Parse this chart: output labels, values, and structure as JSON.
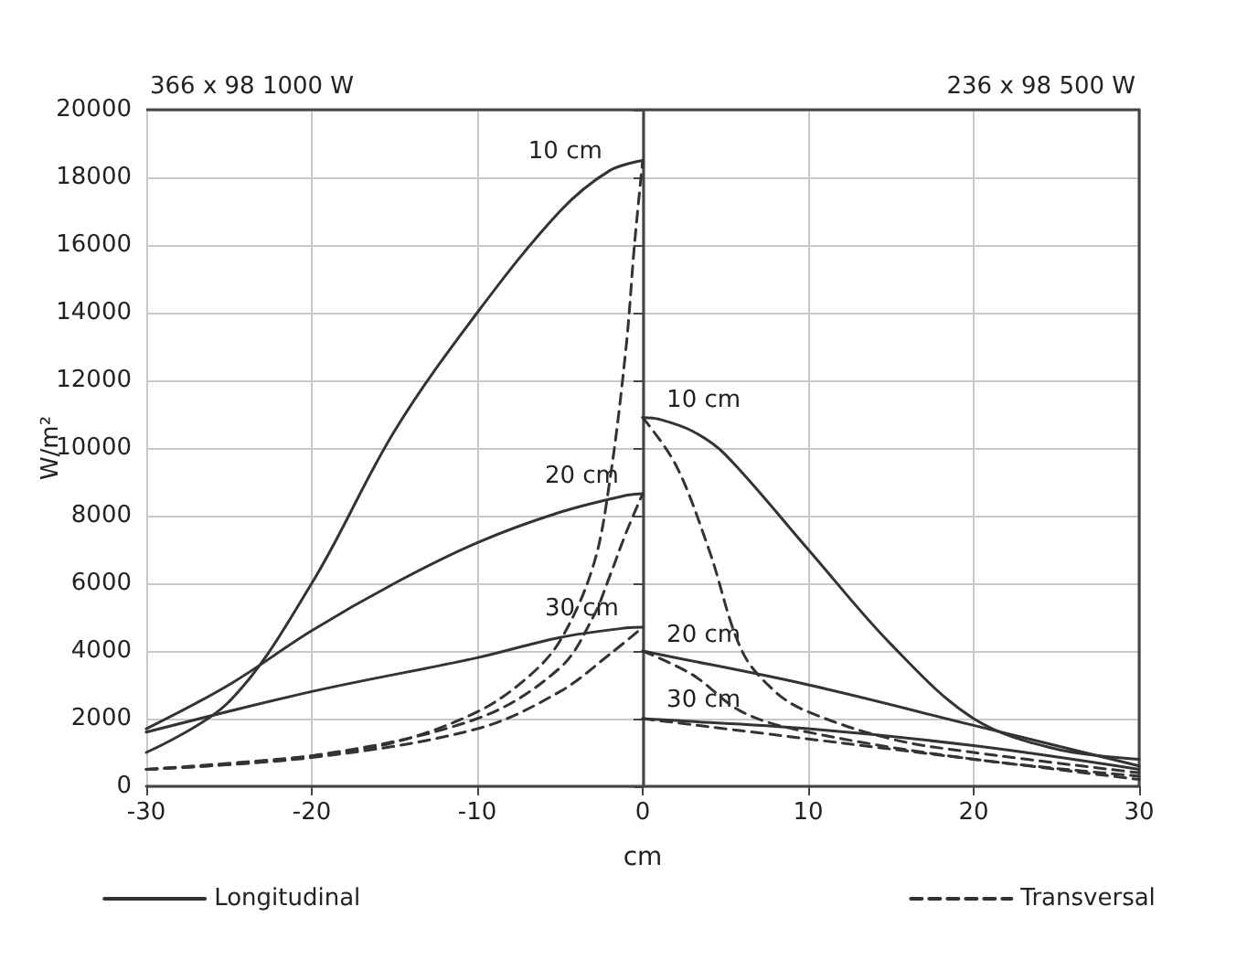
{
  "chart_data": {
    "type": "line",
    "xlabel": "cm",
    "ylabel": "W/m²",
    "xlim": [
      -30,
      30
    ],
    "xticks": [
      -30,
      -20,
      -10,
      0,
      10,
      20,
      30
    ],
    "ylim": [
      0,
      20000
    ],
    "yticks": [
      0,
      2000,
      4000,
      6000,
      8000,
      10000,
      12000,
      14000,
      16000,
      18000,
      20000
    ],
    "grid": true,
    "legend": "bottom",
    "marker": "none",
    "series": [
      {
        "name": "Longitudinal",
        "color": "#333333",
        "line_style": "solid",
        "x": [
          -30,
          -25,
          -20,
          -15,
          -10,
          -5,
          -2,
          0
        ],
        "values": [
          1000,
          2500,
          6000,
          10500,
          14000,
          17000,
          18200,
          18500
        ]
      },
      {
        "name": "Transversal",
        "color": "#333333",
        "line_style": "dashed",
        "x": [
          -30,
          -20,
          -15,
          -10,
          -7,
          -5,
          -3,
          -2,
          -1,
          -0.5,
          0
        ],
        "values": [
          500,
          900,
          1300,
          2200,
          3200,
          4300,
          6500,
          9000,
          13000,
          16000,
          18500
        ]
      },
      {
        "color": "#333333",
        "line_style": "solid",
        "x": [
          -30,
          -25,
          -20,
          -15,
          -10,
          -5,
          -1,
          0
        ],
        "values": [
          1700,
          3000,
          4600,
          6000,
          7200,
          8100,
          8600,
          8650
        ]
      },
      {
        "color": "#333333",
        "line_style": "dashed",
        "x": [
          -30,
          -20,
          -10,
          -5,
          -3,
          -2,
          -1,
          0
        ],
        "values": [
          500,
          900,
          2000,
          3500,
          5000,
          6200,
          7500,
          8650
        ]
      },
      {
        "color": "#333333",
        "line_style": "solid",
        "x": [
          -30,
          -20,
          -10,
          -5,
          -1,
          0
        ],
        "values": [
          1600,
          2800,
          3800,
          4400,
          4680,
          4700
        ]
      },
      {
        "color": "#333333",
        "line_style": "dashed",
        "x": [
          -30,
          -20,
          -10,
          -5,
          -2,
          0
        ],
        "values": [
          500,
          850,
          1700,
          2800,
          3900,
          4700
        ]
      },
      {
        "color": "#333333",
        "line_style": "solid",
        "x": [
          0,
          1,
          3,
          5,
          10,
          15,
          20,
          25,
          30
        ],
        "values": [
          10900,
          10850,
          10500,
          9800,
          7000,
          4200,
          2000,
          1100,
          800
        ]
      },
      {
        "color": "#333333",
        "line_style": "dashed",
        "x": [
          0,
          2,
          4,
          6,
          8,
          10,
          15,
          20,
          30
        ],
        "values": [
          10900,
          9500,
          7000,
          4000,
          2800,
          2200,
          1400,
          1000,
          400
        ]
      },
      {
        "color": "#333333",
        "line_style": "solid",
        "x": [
          0,
          1,
          10,
          20,
          30
        ],
        "values": [
          4000,
          3900,
          3000,
          1800,
          600
        ]
      },
      {
        "color": "#333333",
        "line_style": "dashed",
        "x": [
          0,
          3,
          6,
          10,
          20,
          30
        ],
        "values": [
          4000,
          3300,
          2200,
          1600,
          800,
          300
        ]
      },
      {
        "color": "#333333",
        "line_style": "solid",
        "x": [
          0,
          1,
          10,
          20,
          30
        ],
        "values": [
          2000,
          1970,
          1700,
          1200,
          500
        ]
      },
      {
        "color": "#333333",
        "line_style": "dashed",
        "x": [
          0,
          10,
          20,
          30
        ],
        "values": [
          2000,
          1400,
          800,
          200
        ]
      }
    ],
    "annotations": [
      "366 x 98 1000 W",
      "236 x 98 500 W",
      {
        "text": "10 cm",
        "x": -2,
        "y": 18200
      },
      {
        "text": "20 cm",
        "x": -1,
        "y": 8600
      },
      {
        "text": "30 cm",
        "x": -1,
        "y": 4680
      },
      {
        "text": "10 cm",
        "x": 1,
        "y": 10850
      },
      {
        "text": "20 cm",
        "x": 1,
        "y": 3900
      },
      {
        "text": "30 cm",
        "x": 1,
        "y": 1970
      }
    ]
  }
}
